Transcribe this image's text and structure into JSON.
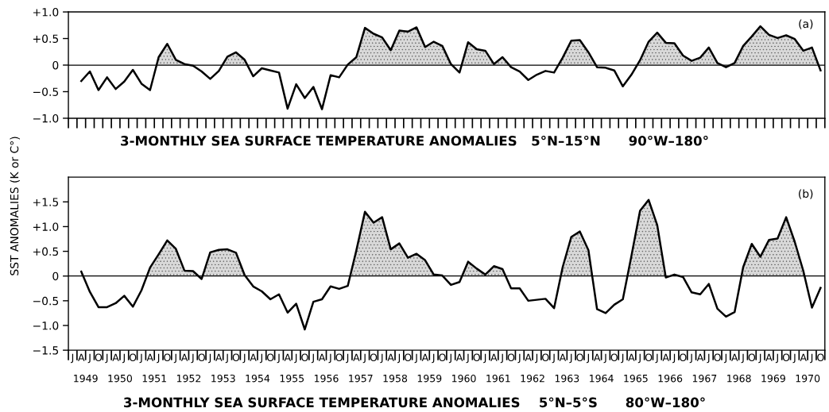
{
  "chart_data": [
    {
      "type": "line",
      "xlabel": "3-MONTHLY SEA SURFACE TEMPERATURE ANOMALIES   5°N–15°N      90°W–180°",
      "annotations": [
        "(a)"
      ],
      "x": [
        1949.375,
        1949.625,
        1949.875,
        1950.125,
        1950.375,
        1950.625,
        1950.875,
        1951.125,
        1951.375,
        1951.625,
        1951.875,
        1952.125,
        1952.375,
        1952.625,
        1952.875,
        1953.125,
        1953.375,
        1953.625,
        1953.875,
        1954.125,
        1954.375,
        1954.625,
        1954.875,
        1955.125,
        1955.375,
        1955.625,
        1955.875,
        1956.125,
        1956.375,
        1956.625,
        1956.875,
        1957.125,
        1957.375,
        1957.625,
        1957.875,
        1958.125,
        1958.375,
        1958.625,
        1958.875,
        1959.125,
        1959.375,
        1959.625,
        1959.875,
        1960.125,
        1960.375,
        1960.625,
        1960.875,
        1961.125,
        1961.375,
        1961.625,
        1961.875,
        1962.125,
        1962.375,
        1962.625,
        1962.875,
        1963.125,
        1963.375,
        1963.625,
        1963.875,
        1964.125,
        1964.375,
        1964.625,
        1964.875,
        1965.125,
        1965.375,
        1965.625,
        1965.875,
        1966.125,
        1966.375,
        1966.625,
        1966.875,
        1967.125,
        1967.375,
        1967.625,
        1967.875,
        1968.125,
        1968.375,
        1968.625,
        1968.875,
        1969.125,
        1969.375,
        1969.625,
        1969.875,
        1970.125,
        1970.375,
        1970.625,
        1970.875
      ],
      "series": [
        {
          "color": "#000000",
          "values": [
            -0.3,
            -0.12,
            -0.47,
            -0.23,
            -0.45,
            -0.31,
            -0.09,
            -0.35,
            -0.47,
            0.15,
            0.4,
            0.1,
            0.02,
            -0.01,
            -0.12,
            -0.26,
            -0.11,
            0.16,
            0.24,
            0.1,
            -0.21,
            -0.06,
            -0.1,
            -0.14,
            -0.82,
            -0.36,
            -0.62,
            -0.41,
            -0.83,
            -0.19,
            -0.23,
            0.01,
            0.15,
            0.7,
            0.59,
            0.52,
            0.28,
            0.65,
            0.63,
            0.71,
            0.34,
            0.44,
            0.36,
            0.02,
            -0.14,
            0.43,
            0.3,
            0.27,
            0.02,
            0.15,
            -0.04,
            -0.12,
            -0.28,
            -0.18,
            -0.11,
            -0.14,
            0.14,
            0.46,
            0.47,
            0.24,
            -0.04,
            -0.05,
            -0.1,
            -0.4,
            -0.18,
            0.09,
            0.44,
            0.61,
            0.42,
            0.41,
            0.18,
            0.08,
            0.14,
            0.33,
            0.04,
            -0.04,
            0.04,
            0.36,
            0.54,
            0.73,
            0.57,
            0.51,
            0.56,
            0.49,
            0.27,
            0.33,
            -0.1
          ]
        }
      ],
      "xlim": [
        1949,
        1971
      ],
      "ylim": [
        -1.0,
        1.0
      ],
      "yticks": [
        {
          "value": 1.0,
          "label": "+1.0"
        },
        {
          "value": 0.5,
          "label": "+0.5"
        },
        0,
        {
          "value": -0.5,
          "label": "−0.5"
        },
        {
          "value": -1.0,
          "label": "−1.0"
        }
      ],
      "xticks": [
        1949,
        1949.25,
        1949.5,
        1949.75,
        1950,
        1950.25,
        1950.5,
        1950.75,
        1951,
        1951.25,
        1951.5,
        1951.75,
        1952,
        1952.25,
        1952.5,
        1952.75,
        1953,
        1953.25,
        1953.5,
        1953.75,
        1954,
        1954.25,
        1954.5,
        1954.75,
        1955,
        1955.25,
        1955.5,
        1955.75,
        1956,
        1956.25,
        1956.5,
        1956.75,
        1957,
        1957.25,
        1957.5,
        1957.75,
        1958,
        1958.25,
        1958.5,
        1958.75,
        1959,
        1959.25,
        1959.5,
        1959.75,
        1960,
        1960.25,
        1960.5,
        1960.75,
        1961,
        1961.25,
        1961.5,
        1961.75,
        1962,
        1962.25,
        1962.5,
        1962.75,
        1963,
        1963.25,
        1963.5,
        1963.75,
        1964,
        1964.25,
        1964.5,
        1964.75,
        1965,
        1965.25,
        1965.5,
        1965.75,
        1966,
        1966.25,
        1966.5,
        1966.75,
        1967,
        1967.25,
        1967.5,
        1967.75,
        1968,
        1968.25,
        1968.5,
        1968.75,
        1969,
        1969.25,
        1969.5,
        1969.75,
        1970,
        1970.25,
        1970.5,
        1970.75,
        1971
      ],
      "tick_labels": "y",
      "ref_lines": [
        {
          "axis": "y",
          "value": 0,
          "color": "#000000"
        }
      ]
    },
    {
      "type": "line",
      "xlabel": "3-MONTHLY SEA SURFACE TEMPERATURE ANOMALIES    5°N–5°S      80°W–180°",
      "ylabel": "SST ANOMALIES (K or C°)",
      "annotations": [
        "(b)",
        "J",
        "A",
        "J",
        "O"
      ],
      "x": [
        1949.375,
        1949.625,
        1949.875,
        1950.125,
        1950.375,
        1950.625,
        1950.875,
        1951.125,
        1951.375,
        1951.625,
        1951.875,
        1952.125,
        1952.375,
        1952.625,
        1952.875,
        1953.125,
        1953.375,
        1953.625,
        1953.875,
        1954.125,
        1954.375,
        1954.625,
        1954.875,
        1955.125,
        1955.375,
        1955.625,
        1955.875,
        1956.125,
        1956.375,
        1956.625,
        1956.875,
        1957.125,
        1957.375,
        1957.625,
        1957.875,
        1958.125,
        1958.375,
        1958.625,
        1958.875,
        1959.125,
        1959.375,
        1959.625,
        1959.875,
        1960.125,
        1960.375,
        1960.625,
        1960.875,
        1961.125,
        1961.375,
        1961.625,
        1961.875,
        1962.125,
        1962.375,
        1962.625,
        1962.875,
        1963.125,
        1963.375,
        1963.625,
        1963.875,
        1964.125,
        1964.375,
        1964.625,
        1964.875,
        1965.125,
        1965.375,
        1965.625,
        1965.875,
        1966.125,
        1966.375,
        1966.625,
        1966.875,
        1967.125,
        1967.375,
        1967.625,
        1967.875,
        1968.125,
        1968.375,
        1968.625,
        1968.875,
        1969.125,
        1969.375,
        1969.625,
        1969.875,
        1970.125,
        1970.375,
        1970.625,
        1970.875
      ],
      "series": [
        {
          "color": "#000000",
          "values": [
            0.09,
            -0.32,
            -0.63,
            -0.63,
            -0.55,
            -0.4,
            -0.62,
            -0.29,
            0.17,
            0.44,
            0.72,
            0.55,
            0.11,
            0.1,
            -0.06,
            0.48,
            0.53,
            0.54,
            0.47,
            0.02,
            -0.21,
            -0.31,
            -0.47,
            -0.37,
            -0.74,
            -0.56,
            -1.08,
            -0.52,
            -0.47,
            -0.21,
            -0.26,
            -0.2,
            0.52,
            1.3,
            1.08,
            1.19,
            0.54,
            0.66,
            0.37,
            0.45,
            0.32,
            0.03,
            0.01,
            -0.18,
            -0.12,
            0.29,
            0.15,
            0.03,
            0.2,
            0.14,
            -0.25,
            -0.25,
            -0.5,
            -0.48,
            -0.46,
            -0.65,
            0.18,
            0.79,
            0.9,
            0.52,
            -0.67,
            -0.75,
            -0.58,
            -0.47,
            0.41,
            1.32,
            1.54,
            1.03,
            -0.03,
            0.03,
            -0.02,
            -0.33,
            -0.37,
            -0.16,
            -0.66,
            -0.82,
            -0.73,
            0.18,
            0.65,
            0.39,
            0.73,
            0.76,
            1.19,
            0.69,
            0.1,
            -0.64,
            -0.24
          ]
        }
      ],
      "xlim": [
        1949,
        1971
      ],
      "ylim": [
        -1.5,
        2.0
      ],
      "yticks": [
        {
          "value": 1.5,
          "label": "+1.5"
        },
        {
          "value": 1.0,
          "label": "+1.0"
        },
        {
          "value": 0.5,
          "label": "+0.5"
        },
        0,
        {
          "value": -0.5,
          "label": "−0.5"
        },
        {
          "value": -1.0,
          "label": "−1.0"
        },
        {
          "value": -1.5,
          "label": "−1.5"
        }
      ],
      "xticks": [
        {
          "value": 1949,
          "label": null
        },
        {
          "value": 1949.25,
          "label": null
        },
        {
          "value": 1949.5,
          "label": "1949"
        },
        {
          "value": 1949.75,
          "label": null
        },
        {
          "value": 1950,
          "label": null
        },
        {
          "value": 1950.25,
          "label": null
        },
        {
          "value": 1950.5,
          "label": "1950"
        },
        {
          "value": 1950.75,
          "label": null
        },
        {
          "value": 1951,
          "label": null
        },
        {
          "value": 1951.25,
          "label": null
        },
        {
          "value": 1951.5,
          "label": "1951"
        },
        {
          "value": 1951.75,
          "label": null
        },
        {
          "value": 1952,
          "label": null
        },
        {
          "value": 1952.25,
          "label": null
        },
        {
          "value": 1952.5,
          "label": "1952"
        },
        {
          "value": 1952.75,
          "label": null
        },
        {
          "value": 1953,
          "label": null
        },
        {
          "value": 1953.25,
          "label": null
        },
        {
          "value": 1953.5,
          "label": "1953"
        },
        {
          "value": 1953.75,
          "label": null
        },
        {
          "value": 1954,
          "label": null
        },
        {
          "value": 1954.25,
          "label": null
        },
        {
          "value": 1954.5,
          "label": "1954"
        },
        {
          "value": 1954.75,
          "label": null
        },
        {
          "value": 1955,
          "label": null
        },
        {
          "value": 1955.25,
          "label": null
        },
        {
          "value": 1955.5,
          "label": "1955"
        },
        {
          "value": 1955.75,
          "label": null
        },
        {
          "value": 1956,
          "label": null
        },
        {
          "value": 1956.25,
          "label": null
        },
        {
          "value": 1956.5,
          "label": "1956"
        },
        {
          "value": 1956.75,
          "label": null
        },
        {
          "value": 1957,
          "label": null
        },
        {
          "value": 1957.25,
          "label": null
        },
        {
          "value": 1957.5,
          "label": "1957"
        },
        {
          "value": 1957.75,
          "label": null
        },
        {
          "value": 1958,
          "label": null
        },
        {
          "value": 1958.25,
          "label": null
        },
        {
          "value": 1958.5,
          "label": "1958"
        },
        {
          "value": 1958.75,
          "label": null
        },
        {
          "value": 1959,
          "label": null
        },
        {
          "value": 1959.25,
          "label": null
        },
        {
          "value": 1959.5,
          "label": "1959"
        },
        {
          "value": 1959.75,
          "label": null
        },
        {
          "value": 1960,
          "label": null
        },
        {
          "value": 1960.25,
          "label": null
        },
        {
          "value": 1960.5,
          "label": "1960"
        },
        {
          "value": 1960.75,
          "label": null
        },
        {
          "value": 1961,
          "label": null
        },
        {
          "value": 1961.25,
          "label": null
        },
        {
          "value": 1961.5,
          "label": "1961"
        },
        {
          "value": 1961.75,
          "label": null
        },
        {
          "value": 1962,
          "label": null
        },
        {
          "value": 1962.25,
          "label": null
        },
        {
          "value": 1962.5,
          "label": "1962"
        },
        {
          "value": 1962.75,
          "label": null
        },
        {
          "value": 1963,
          "label": null
        },
        {
          "value": 1963.25,
          "label": null
        },
        {
          "value": 1963.5,
          "label": "1963"
        },
        {
          "value": 1963.75,
          "label": null
        },
        {
          "value": 1964,
          "label": null
        },
        {
          "value": 1964.25,
          "label": null
        },
        {
          "value": 1964.5,
          "label": "1964"
        },
        {
          "value": 1964.75,
          "label": null
        },
        {
          "value": 1965,
          "label": null
        },
        {
          "value": 1965.25,
          "label": null
        },
        {
          "value": 1965.5,
          "label": "1965"
        },
        {
          "value": 1965.75,
          "label": null
        },
        {
          "value": 1966,
          "label": null
        },
        {
          "value": 1966.25,
          "label": null
        },
        {
          "value": 1966.5,
          "label": "1966"
        },
        {
          "value": 1966.75,
          "label": null
        },
        {
          "value": 1967,
          "label": null
        },
        {
          "value": 1967.25,
          "label": null
        },
        {
          "value": 1967.5,
          "label": "1967"
        },
        {
          "value": 1967.75,
          "label": null
        },
        {
          "value": 1968,
          "label": null
        },
        {
          "value": 1968.25,
          "label": null
        },
        {
          "value": 1968.5,
          "label": "1968"
        },
        {
          "value": 1968.75,
          "label": null
        },
        {
          "value": 1969,
          "label": null
        },
        {
          "value": 1969.25,
          "label": null
        },
        {
          "value": 1969.5,
          "label": "1969"
        },
        {
          "value": 1969.75,
          "label": null
        },
        {
          "value": 1970,
          "label": null
        },
        {
          "value": 1970.25,
          "label": null
        },
        {
          "value": 1970.5,
          "label": "1970"
        },
        {
          "value": 1970.75,
          "label": null
        },
        {
          "value": 1971,
          "label": null
        }
      ],
      "ref_lines": [
        {
          "axis": "y",
          "value": 0,
          "color": "#000000"
        }
      ]
    }
  ]
}
